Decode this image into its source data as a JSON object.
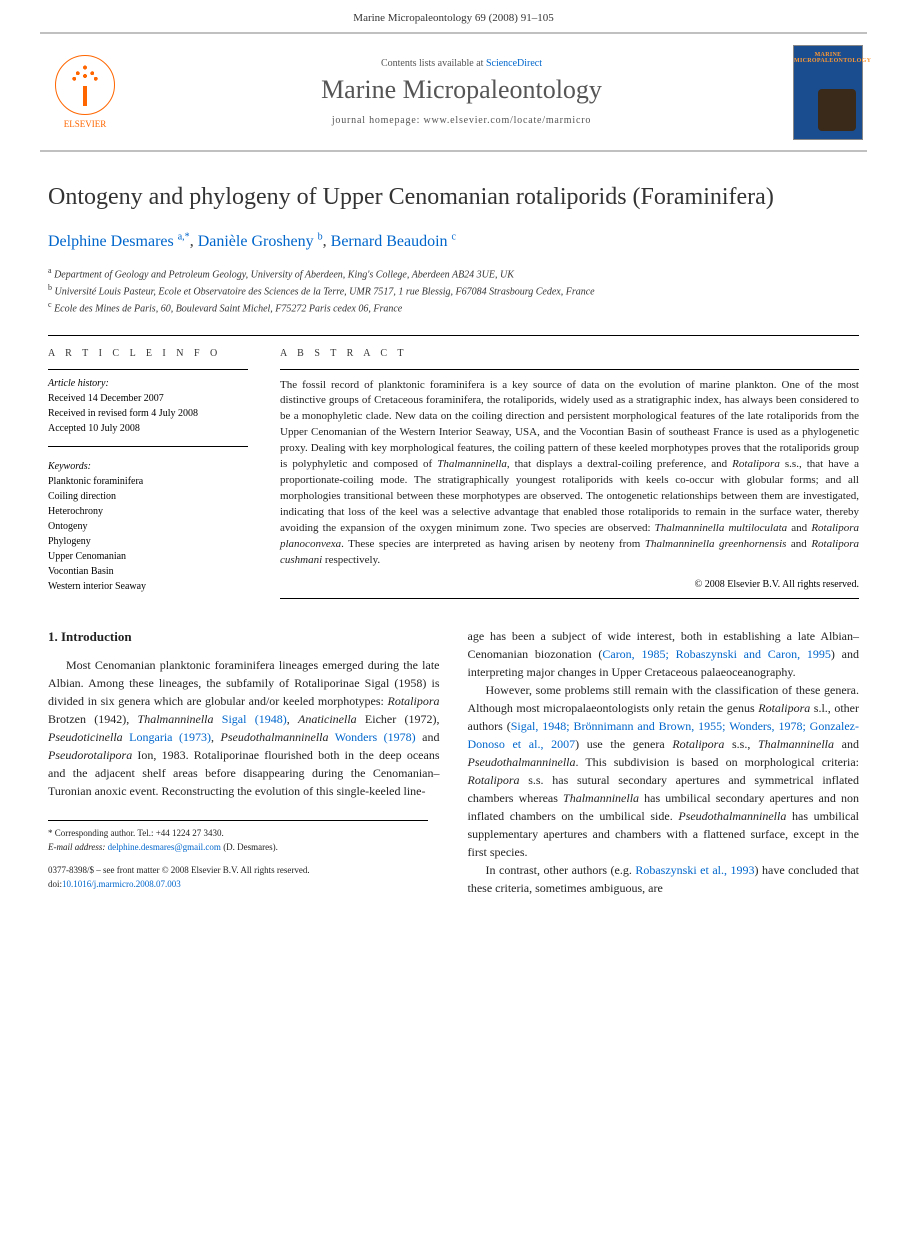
{
  "header": {
    "running_head": "Marine Micropaleontology 69 (2008) 91–105"
  },
  "banner": {
    "elsevier_label": "ELSEVIER",
    "contents_prefix": "Contents lists available at ",
    "contents_link": "ScienceDirect",
    "journal_name": "Marine Micropaleontology",
    "homepage_prefix": "journal homepage: ",
    "homepage_url": "www.elsevier.com/locate/marmicro",
    "cover_title": "MARINE MICROPALEONTOLOGY"
  },
  "article": {
    "title": "Ontogeny and phylogeny of Upper Cenomanian rotaliporids (Foraminifera)",
    "authors": [
      {
        "name": "Delphine Desmares",
        "sup": "a,*"
      },
      {
        "name": "Danièle Grosheny",
        "sup": "b"
      },
      {
        "name": "Bernard Beaudoin",
        "sup": "c"
      }
    ],
    "affiliations": [
      {
        "sup": "a",
        "text": "Department of Geology and Petroleum Geology, University of Aberdeen, King's College, Aberdeen AB24 3UE, UK"
      },
      {
        "sup": "b",
        "text": "Université Louis Pasteur, Ecole et Observatoire des Sciences de la Terre, UMR 7517, 1 rue Blessig, F67084 Strasbourg Cedex, France"
      },
      {
        "sup": "c",
        "text": "Ecole des Mines de Paris, 60, Boulevard Saint Michel, F75272 Paris cedex 06, France"
      }
    ]
  },
  "info": {
    "article_info_label": "A R T I C L E   I N F O",
    "abstract_label": "A B S T R A C T",
    "history_label": "Article history:",
    "history": [
      "Received 14 December 2007",
      "Received in revised form 4 July 2008",
      "Accepted 10 July 2008"
    ],
    "keywords_label": "Keywords:",
    "keywords": [
      "Planktonic foraminifera",
      "Coiling direction",
      "Heterochrony",
      "Ontogeny",
      "Phylogeny",
      "Upper Cenomanian",
      "Vocontian Basin",
      "Western interior Seaway"
    ]
  },
  "abstract": {
    "text": "The fossil record of planktonic foraminifera is a key source of data on the evolution of marine plankton. One of the most distinctive groups of Cretaceous foraminifera, the rotaliporids, widely used as a stratigraphic index, has always been considered to be a monophyletic clade. New data on the coiling direction and persistent morphological features of the late rotaliporids from the Upper Cenomanian of the Western Interior Seaway, USA, and the Vocontian Basin of southeast France is used as a phylogenetic proxy. Dealing with key morphological features, the coiling pattern of these keeled morphotypes proves that the rotaliporids group is polyphyletic and composed of Thalmanninella, that displays a dextral-coiling preference, and Rotalipora s.s., that have a proportionate-coiling mode. The stratigraphically youngest rotaliporids with keels co-occur with globular forms; and all morphologies transitional between these morphotypes are observed. The ontogenetic relationships between them are investigated, indicating that loss of the keel was a selective advantage that enabled those rotaliporids to remain in the surface water, thereby avoiding the expansion of the oxygen minimum zone. Two species are observed: Thalmanninella multiloculata and Rotalipora planoconvexa. These species are interpreted as having arisen by neoteny from Thalmanninella greenhornensis and Rotalipora cushmani respectively.",
    "copyright": "© 2008 Elsevier B.V. All rights reserved."
  },
  "body": {
    "section_heading": "1. Introduction",
    "para1_pre": "Most Cenomanian planktonic foraminifera lineages emerged during the late Albian. Among these lineages, the subfamily of Rotaliporinae Sigal (1958) is divided in six genera which are globular and/or keeled morphotypes: ",
    "para1_taxa1": "Rotalipora",
    "para1_seg1": " Brotzen (1942), ",
    "para1_taxa2": "Thalmanninella",
    "para1_link1": " Sigal (1948)",
    "para1_seg2": ", ",
    "para1_taxa3": "Anaticinella",
    "para1_seg3": " Eicher (1972), ",
    "para1_taxa4": "Pseudoticinella",
    "para1_link2": " Longaria (1973)",
    "para1_seg4": ", ",
    "para1_taxa5": "Pseudothalmanninella",
    "para1_link3": " Wonders (1978)",
    "para1_seg5": " and ",
    "para1_taxa6": "Pseudorotalipora",
    "para1_seg6": " Ion, 1983. Rotaliporinae flourished both in the deep oceans and the adjacent shelf areas before disappearing during the Cenomanian–Turonian anoxic event. Reconstructing the evolution of this single-keeled line-",
    "para1_cont": "age has been a subject of wide interest, both in establishing a late Albian–Cenomanian biozonation (",
    "para1_link4": "Caron, 1985; Robaszynski and Caron, 1995",
    "para1_seg7": ") and interpreting major changes in Upper Cretaceous palaeoceanography.",
    "para2_pre": "However, some problems still remain with the classification of these genera. Although most micropalaeontologists only retain the genus ",
    "para2_taxa1": "Rotalipora",
    "para2_seg1": " s.l., other authors (",
    "para2_link1": "Sigal, 1948; Brönnimann and Brown, 1955; Wonders, 1978; Gonzalez-Donoso et al., 2007",
    "para2_seg2": ") use the genera ",
    "para2_taxa2": "Rotalipora",
    "para2_seg3": " s.s., ",
    "para2_taxa3": "Thalmanninella",
    "para2_seg4": " and ",
    "para2_taxa4": "Pseudothalmanninella",
    "para2_seg5": ". This subdivision is based on morphological criteria: ",
    "para2_taxa5": "Rotalipora",
    "para2_seg6": " s.s. has sutural secondary apertures and symmetrical inflated chambers whereas ",
    "para2_taxa6": "Thalmanninella",
    "para2_seg7": " has umbilical secondary apertures and non inflated chambers on the umbilical side. ",
    "para2_taxa7": "Pseudothalmanninella",
    "para2_seg8": " has umbilical supplementary apertures and chambers with a flattened surface, except in the first species.",
    "para3_pre": "In contrast, other authors (e.g. ",
    "para3_link1": "Robaszynski et al., 1993",
    "para3_seg1": ") have concluded that these criteria, sometimes ambiguous, are"
  },
  "footer": {
    "corr_label": "* Corresponding author. Tel.: +44 1224 27 3430.",
    "email_label": "E-mail address:",
    "email": "delphine.desmares@gmail.com",
    "email_suffix": " (D. Desmares).",
    "issn_line": "0377-8398/$ – see front matter © 2008 Elsevier B.V. All rights reserved.",
    "doi_label": "doi:",
    "doi": "10.1016/j.marmicro.2008.07.003"
  },
  "colors": {
    "link": "#0066cc",
    "elsevier_orange": "#ff6600",
    "cover_bg": "#1a4d8f",
    "cover_accent": "#ff9933",
    "rule": "#000000",
    "banner_rule": "#c0c0c0",
    "text": "#222222"
  }
}
